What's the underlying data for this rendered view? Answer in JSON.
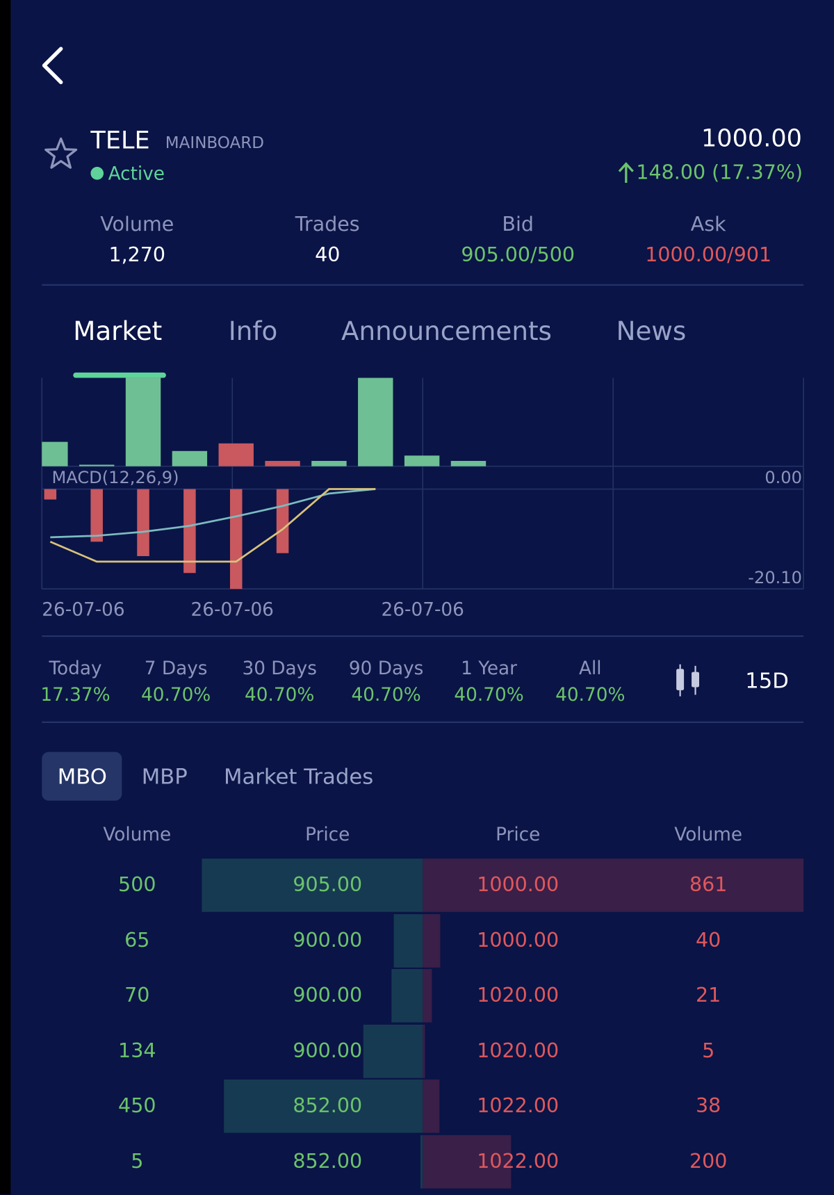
{
  "header": {
    "symbol": "TELE",
    "board": "MAINBOARD",
    "status": "Active",
    "price": "1000.00",
    "change": "148.00 (17.37%)"
  },
  "stats": [
    {
      "label": "Volume",
      "value": "1,270"
    },
    {
      "label": "Trades",
      "value": "40"
    },
    {
      "label": "Bid",
      "value": "905.00/500"
    },
    {
      "label": "Ask",
      "value": "1000.00/901"
    }
  ],
  "tabs": [
    "Market",
    "Info",
    "Announcements",
    "News"
  ],
  "chart_data": {
    "type": "bar",
    "indicator_label": "MACD(12,26,9)",
    "x_labels": [
      "26-07-06",
      "26-07-06",
      "26-07-06"
    ],
    "volume": {
      "values": [
        32,
        2,
        116,
        20,
        30,
        7,
        7,
        116,
        14,
        7
      ],
      "colors": [
        "#6fbf95",
        "#6fbf95",
        "#6fbf95",
        "#6fbf95",
        "#c9585f",
        "#c9585f",
        "#6fbf95",
        "#6fbf95",
        "#6fbf95",
        "#6fbf95"
      ],
      "ylim": [
        0,
        120
      ]
    },
    "histogram": {
      "values": [
        -2.1,
        -10.6,
        -13.5,
        -16.9,
        -20.1,
        -12.9
      ],
      "color": "#c9585f"
    },
    "lines": [
      {
        "color": "#7bbcc0",
        "values": [
          -9.7,
          -9.4,
          -8.6,
          -7.4,
          -5.5,
          -3.4,
          -0.9,
          0
        ]
      },
      {
        "color": "#d9c27a",
        "values": [
          -10.6,
          -14.6,
          -14.6,
          -14.6,
          -14.6,
          -8.1,
          0,
          0
        ]
      }
    ],
    "ylim": [
      -20.1,
      4.6
    ],
    "yticks": [
      {
        "value": 0,
        "label": "0.00"
      },
      {
        "value": -20.1,
        "label": "-20.10"
      }
    ]
  },
  "periods": [
    {
      "label": "Today",
      "change": "17.37%"
    },
    {
      "label": "7 Days",
      "change": "40.70%"
    },
    {
      "label": "30 Days",
      "change": "40.70%"
    },
    {
      "label": "90 Days",
      "change": "40.70%"
    },
    {
      "label": "1 Year",
      "change": "40.70%"
    },
    {
      "label": "All",
      "change": "40.70%"
    }
  ],
  "interval": "15D",
  "book_tabs": [
    "MBO",
    "MBP",
    "Market Trades"
  ],
  "book": {
    "headers": [
      "Volume",
      "Price",
      "Price",
      "Volume"
    ],
    "rows": [
      {
        "bid_volume": 500,
        "bid_price": "905.00",
        "ask_price": "1000.00",
        "ask_volume": 861
      },
      {
        "bid_volume": 65,
        "bid_price": "900.00",
        "ask_price": "1000.00",
        "ask_volume": 40
      },
      {
        "bid_volume": 70,
        "bid_price": "900.00",
        "ask_price": "1020.00",
        "ask_volume": 21
      },
      {
        "bid_volume": 134,
        "bid_price": "900.00",
        "ask_price": "1020.00",
        "ask_volume": 5
      },
      {
        "bid_volume": 450,
        "bid_price": "852.00",
        "ask_price": "1022.00",
        "ask_volume": 38
      },
      {
        "bid_volume": 5,
        "bid_price": "852.00",
        "ask_price": "1022.00",
        "ask_volume": 200
      }
    ]
  }
}
